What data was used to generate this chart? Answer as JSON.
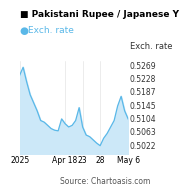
{
  "title": "Pakistani Rupee / Japanese Y",
  "legend_label": "Exch. rate",
  "ylabel": "Exch. rate",
  "source": "Source: Chartoasis.com",
  "line_color": "#5ab8e8",
  "fill_color": "#cce8f8",
  "yticks": [
    0.5022,
    0.5063,
    0.5104,
    0.5145,
    0.5187,
    0.5228,
    0.5269
  ],
  "ylim": [
    0.4995,
    0.5285
  ],
  "xtick_labels": [
    "2025",
    "Apr 18",
    "23",
    "28",
    "May 6"
  ],
  "xtick_positions": [
    0,
    13,
    18,
    23,
    31
  ],
  "data_x": [
    0,
    1,
    2,
    3,
    4,
    5,
    6,
    7,
    8,
    9,
    10,
    11,
    12,
    13,
    14,
    15,
    16,
    17,
    18,
    19,
    20,
    21,
    22,
    23,
    24,
    25,
    26,
    27,
    28,
    29,
    30,
    31
  ],
  "data_y": [
    0.524,
    0.5265,
    0.522,
    0.518,
    0.5155,
    0.513,
    0.51,
    0.5095,
    0.5085,
    0.5075,
    0.507,
    0.5068,
    0.5105,
    0.509,
    0.508,
    0.5085,
    0.51,
    0.514,
    0.508,
    0.5055,
    0.505,
    0.504,
    0.503,
    0.5022,
    0.5045,
    0.506,
    0.508,
    0.51,
    0.5145,
    0.5175,
    0.513,
    0.5105
  ],
  "background_color": "#ffffff",
  "grid_color": "#dddddd",
  "title_fontsize": 6.5,
  "legend_fontsize": 6.5,
  "tick_fontsize": 5.5,
  "source_fontsize": 5.5,
  "ylabel_fontsize": 6.0
}
